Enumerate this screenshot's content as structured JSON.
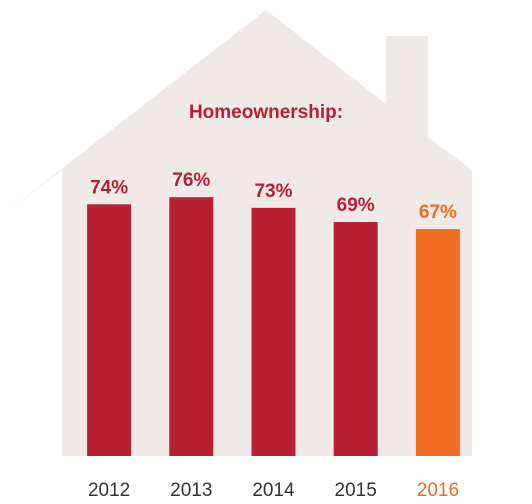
{
  "chart_data": {
    "type": "bar",
    "title": "Homeownership:",
    "categories": [
      "2012",
      "2013",
      "2014",
      "2015",
      "2016"
    ],
    "values": [
      74,
      76,
      73,
      69,
      67
    ],
    "value_labels": [
      "74%",
      "76%",
      "73%",
      "69%",
      "67%"
    ],
    "color": "#b81f33",
    "highlight": "2016",
    "highlight_color": "#f26c22"
  }
}
